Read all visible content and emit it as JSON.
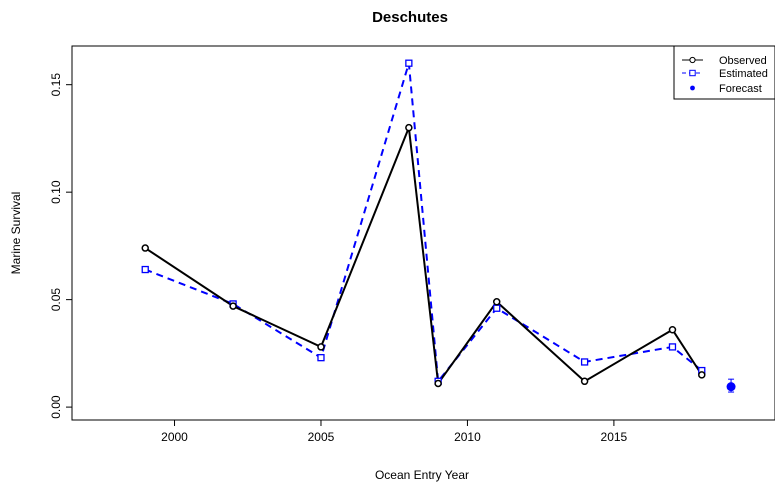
{
  "chart_data": {
    "type": "line",
    "title": "Deschutes",
    "xlabel": "Ocean Entry Year",
    "ylabel": "Marine Survival",
    "xlim": [
      1996.5,
      2020.5
    ],
    "ylim": [
      -0.006,
      0.168
    ],
    "xticks": [
      2000,
      2005,
      2010,
      2015
    ],
    "xtick_labels": [
      "2000",
      "2005",
      "2010",
      "2015"
    ],
    "yticks": [
      0.0,
      0.05,
      0.1,
      0.15
    ],
    "ytick_labels": [
      "0.00",
      "0.05",
      "0.10",
      "0.15"
    ],
    "grid": false,
    "legend_position": "top-right",
    "colors": {
      "observed": "#000000",
      "estimated": "#0000ff",
      "forecast": "#0000ff"
    },
    "series": [
      {
        "name": "Observed",
        "style": "solid",
        "marker": "circle",
        "color": "#000000",
        "x": [
          1999,
          2002,
          2005,
          2008,
          2009,
          2011,
          2014,
          2017,
          2018
        ],
        "y": [
          0.074,
          0.047,
          0.028,
          0.13,
          0.011,
          0.049,
          0.012,
          0.036,
          0.015
        ]
      },
      {
        "name": "Estimated",
        "style": "dashed",
        "marker": "square",
        "color": "#0000ff",
        "x": [
          1999,
          2002,
          2005,
          2008,
          2009,
          2011,
          2014,
          2017,
          2018
        ],
        "y": [
          0.064,
          0.048,
          0.023,
          0.16,
          0.012,
          0.046,
          0.021,
          0.028,
          0.017
        ]
      },
      {
        "name": "Forecast",
        "style": "point",
        "marker": "filled-circle",
        "color": "#0000ff",
        "x": [
          2019
        ],
        "y": [
          0.0095
        ],
        "error_low": [
          0.007
        ],
        "error_high": [
          0.013
        ]
      }
    ]
  }
}
